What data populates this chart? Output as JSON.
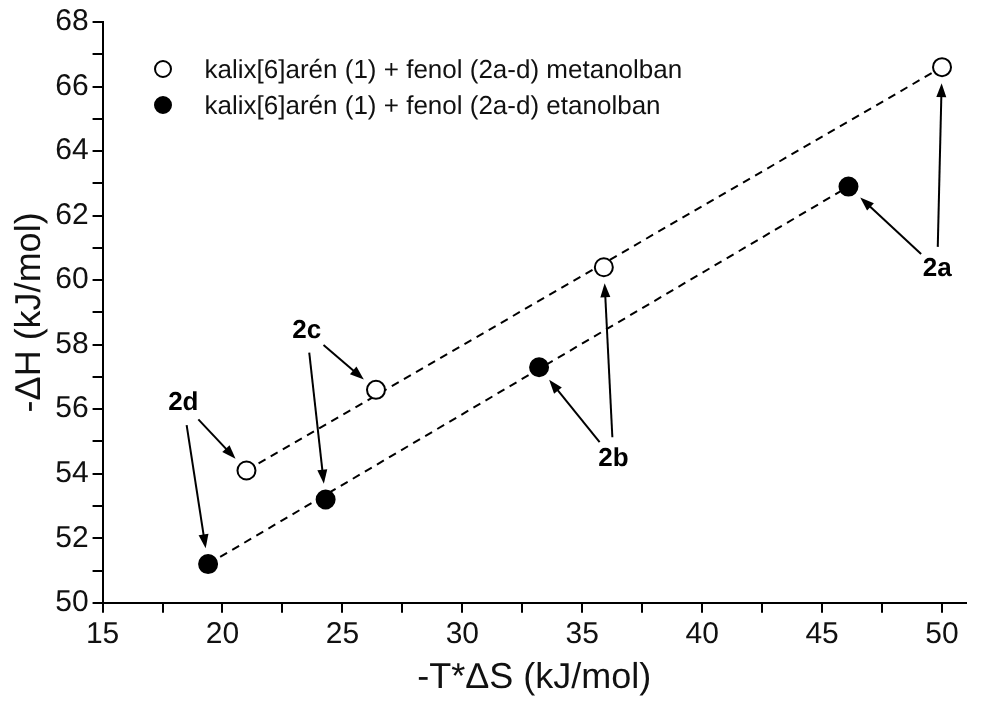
{
  "chart_data": {
    "type": "scatter",
    "xlabel": "-T*ΔS (kJ/mol)",
    "ylabel": "-ΔH (kJ/mol)",
    "xlim": [
      15,
      51
    ],
    "ylim": [
      50,
      68
    ],
    "xticks": [
      15,
      {
        "value": 17.5,
        "label": null
      },
      20,
      {
        "value": 22.5,
        "label": null
      },
      25,
      {
        "value": 27.5,
        "label": null
      },
      30,
      {
        "value": 32.5,
        "label": null
      },
      35,
      {
        "value": 37.5,
        "label": null
      },
      40,
      {
        "value": 42.5,
        "label": null
      },
      45,
      {
        "value": 47.5,
        "label": null
      },
      50
    ],
    "yticks": [
      50,
      {
        "value": 51,
        "label": null
      },
      52,
      {
        "value": 53,
        "label": null
      },
      54,
      {
        "value": 55,
        "label": null
      },
      56,
      {
        "value": 57,
        "label": null
      },
      58,
      {
        "value": 59,
        "label": null
      },
      60,
      {
        "value": 61,
        "label": null
      },
      62,
      {
        "value": 63,
        "label": null
      },
      64,
      {
        "value": 65,
        "label": null
      },
      66,
      {
        "value": 67,
        "label": null
      },
      68
    ],
    "grid": false,
    "legend": "top left",
    "marker": "circle",
    "series": [
      {
        "name": "kalix[6]arén (1) + fenol (2a-d) metanolban",
        "color": "#ffffff",
        "x": [
          21.0,
          26.4,
          35.9,
          50.0
        ],
        "values": [
          54.1,
          56.6,
          60.4,
          66.6
        ]
      },
      {
        "name": "kalix[6]arén (1) + fenol (2a-d) etanolban",
        "color": "#000000",
        "x": [
          19.4,
          24.3,
          33.2,
          46.1
        ],
        "values": [
          51.2,
          53.2,
          57.3,
          62.9
        ]
      },
      {
        "type": "line",
        "color": "#000000",
        "line_style": "dashed",
        "marker": "none",
        "x": [
          21.0,
          50.0
        ],
        "values": [
          54.1,
          66.6
        ]
      },
      {
        "type": "line",
        "color": "#000000",
        "line_style": "dashed",
        "marker": "none",
        "x": [
          19.4,
          46.1
        ],
        "values": [
          51.2,
          62.9
        ]
      }
    ],
    "annotations": [
      "2d",
      "2c",
      "2b",
      "2a"
    ]
  }
}
